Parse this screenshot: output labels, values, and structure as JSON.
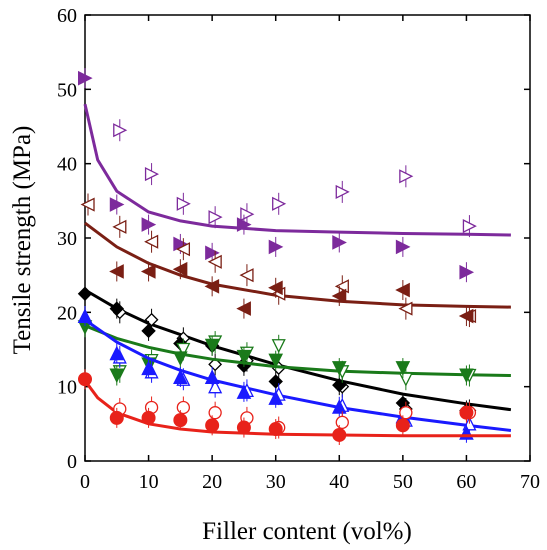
{
  "chart_data": {
    "type": "scatter",
    "title": "",
    "xlabel": "Filler content (vol%)",
    "ylabel": "Tensile strength (MPa)",
    "xlim": [
      0,
      70
    ],
    "ylim": [
      0,
      60
    ],
    "xticks": [
      "0",
      "10",
      "20",
      "30",
      "40",
      "50",
      "60",
      "70"
    ],
    "yticks": [
      "0",
      "10",
      "20",
      "30",
      "40",
      "50",
      "60"
    ],
    "grid": false,
    "legend": "none",
    "series": [
      {
        "marker": "triangle-right",
        "color": "#7d2a9c",
        "filled": {
          "x": [
            0,
            5,
            10,
            15,
            20,
            25,
            30,
            40,
            50,
            60
          ],
          "y": [
            51.5,
            34.5,
            31.8,
            29.2,
            28,
            31.8,
            28.8,
            29.4,
            28.8,
            25.4
          ]
        },
        "open": {
          "x": [
            5,
            10,
            15,
            20,
            25,
            30,
            40,
            50,
            60
          ],
          "y": [
            44.5,
            38.6,
            34.6,
            32.8,
            33.2,
            34.6,
            36.2,
            38.3,
            31.6
          ]
        },
        "fit": {
          "x": [
            0,
            2,
            5,
            10,
            15,
            20,
            30,
            40,
            50,
            60,
            67
          ],
          "y": [
            48,
            40.5,
            36.3,
            33.5,
            32.3,
            31.6,
            31,
            30.8,
            30.6,
            30.5,
            30.4
          ]
        }
      },
      {
        "marker": "triangle-left",
        "color": "#7a1f14",
        "filled": {
          "x": [
            5,
            10,
            15,
            20,
            25,
            30,
            40,
            50,
            60
          ],
          "y": [
            25.5,
            25.5,
            25.8,
            23.5,
            20.5,
            23.3,
            22.2,
            23,
            19.5
          ]
        },
        "open": {
          "x": [
            0,
            5,
            10,
            15,
            20,
            25,
            30,
            40,
            50,
            60
          ],
          "y": [
            34.5,
            31.5,
            29.5,
            28.5,
            26.8,
            25,
            22.5,
            23.5,
            20.5,
            19.5
          ]
        },
        "fit": {
          "x": [
            0,
            5,
            10,
            15,
            20,
            30,
            40,
            50,
            60,
            67
          ],
          "y": [
            32,
            28.8,
            26.6,
            25,
            23.8,
            22.3,
            21.5,
            21,
            20.8,
            20.7
          ]
        }
      },
      {
        "marker": "diamond",
        "color": "#000000",
        "filled": {
          "x": [
            0,
            5,
            10,
            15,
            20,
            25,
            30,
            40,
            50,
            60
          ],
          "y": [
            22.5,
            20.5,
            17.5,
            15.8,
            15.5,
            12.8,
            10.7,
            10.2,
            7.8,
            6.8
          ]
        },
        "open": {
          "x": [
            5,
            10,
            15,
            20,
            25,
            30,
            40,
            50,
            60
          ],
          "y": [
            20,
            19,
            16.5,
            13,
            13.5,
            12.5,
            10,
            7,
            6.8
          ]
        },
        "fit": {
          "x": [
            0,
            5,
            10,
            15,
            20,
            30,
            40,
            50,
            60,
            67
          ],
          "y": [
            23,
            20.5,
            18.5,
            17,
            15.5,
            13,
            10.8,
            9,
            7.7,
            6.9
          ]
        }
      },
      {
        "marker": "triangle-down",
        "color": "#1a7a1a",
        "filled": {
          "x": [
            0,
            5,
            10,
            15,
            20,
            25,
            30,
            40,
            50,
            60
          ],
          "y": [
            18,
            11.5,
            13,
            13.8,
            15.5,
            14,
            13.5,
            12.5,
            12.5,
            11.5
          ]
        },
        "open": {
          "x": [
            5,
            10,
            15,
            20,
            25,
            30,
            40,
            50,
            60
          ],
          "y": [
            12,
            13.5,
            15,
            16,
            14.5,
            15.5,
            12,
            11,
            11.5
          ]
        },
        "fit": {
          "x": [
            0,
            5,
            10,
            15,
            20,
            30,
            40,
            50,
            60,
            67
          ],
          "y": [
            18.2,
            16.5,
            15.3,
            14.4,
            13.7,
            12.7,
            12.1,
            11.8,
            11.6,
            11.5
          ]
        }
      },
      {
        "marker": "triangle-up",
        "color": "#1a1aff",
        "filled": {
          "x": [
            0,
            5,
            10,
            15,
            20,
            25,
            30,
            40,
            50,
            60
          ],
          "y": [
            19.5,
            14.5,
            12.5,
            11.3,
            11.3,
            9.3,
            8.5,
            7.3,
            6,
            3.8
          ]
        },
        "open": {
          "x": [
            5,
            10,
            15,
            20,
            25,
            30,
            40,
            50,
            60
          ],
          "y": [
            14,
            12,
            11,
            10,
            9.5,
            9,
            7.5,
            5.5,
            5
          ]
        },
        "fit": {
          "x": [
            0,
            5,
            10,
            15,
            20,
            30,
            40,
            50,
            60,
            67
          ],
          "y": [
            19,
            16,
            13.8,
            12.2,
            10.9,
            8.9,
            7.2,
            5.9,
            4.8,
            4.1
          ]
        }
      },
      {
        "marker": "circle",
        "color": "#e8221a",
        "filled": {
          "x": [
            0,
            5,
            10,
            15,
            20,
            25,
            30,
            40,
            50,
            60
          ],
          "y": [
            11,
            5.8,
            5.8,
            5.5,
            4.8,
            4.5,
            4.3,
            3.5,
            4.8,
            6.5
          ]
        },
        "open": {
          "x": [
            5,
            10,
            15,
            20,
            25,
            30,
            40,
            50,
            60
          ],
          "y": [
            7,
            7.2,
            7.2,
            6.5,
            5.8,
            4.5,
            5.2,
            6.5,
            6.5
          ]
        },
        "fit": {
          "x": [
            0,
            2,
            5,
            10,
            15,
            20,
            30,
            40,
            50,
            60,
            67
          ],
          "y": [
            10.8,
            8.5,
            6.5,
            5,
            4.3,
            3.9,
            3.6,
            3.5,
            3.4,
            3.4,
            3.4
          ]
        }
      }
    ]
  }
}
